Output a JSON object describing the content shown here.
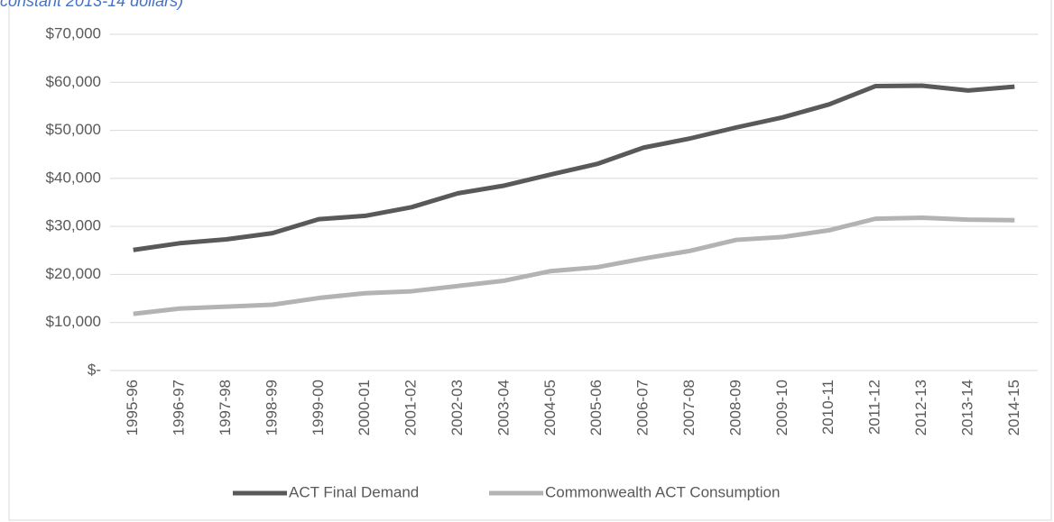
{
  "chart_data": {
    "type": "line",
    "title": "constant 2013-14 dollars)",
    "categories": [
      "1995-96",
      "1996-97",
      "1997-98",
      "1998-99",
      "1999-00",
      "2000-01",
      "2001-02",
      "2002-03",
      "2003-04",
      "2004-05",
      "2005-06",
      "2006-07",
      "2007-08",
      "2008-09",
      "2009-10",
      "2010-11",
      "2011-12",
      "2012-13",
      "2013-14",
      "2014-15"
    ],
    "series": [
      {
        "name": "ACT Final Demand",
        "color": "#595959",
        "values": [
          25100,
          26500,
          27300,
          28600,
          31500,
          32200,
          34000,
          36900,
          38500,
          40800,
          43000,
          46400,
          48300,
          50600,
          52700,
          55400,
          59200,
          59300,
          58300,
          59100
        ]
      },
      {
        "name": "Commonwealth ACT Consumption",
        "color": "#b3b3b3",
        "values": [
          11800,
          12900,
          13300,
          13700,
          15100,
          16100,
          16500,
          17600,
          18700,
          20700,
          21500,
          23300,
          24900,
          27200,
          27800,
          29200,
          31600,
          31800,
          31400,
          31300
        ]
      }
    ],
    "ylim": [
      0,
      70000
    ],
    "yticks": [
      {
        "value": 0,
        "label": "$-"
      },
      {
        "value": 10000,
        "label": "$10,000"
      },
      {
        "value": 20000,
        "label": "$20,000"
      },
      {
        "value": 30000,
        "label": "$30,000"
      },
      {
        "value": 40000,
        "label": "$40,000"
      },
      {
        "value": 50000,
        "label": "$50,000"
      },
      {
        "value": 60000,
        "label": "$60,000"
      },
      {
        "value": 70000,
        "label": "$70,000"
      }
    ],
    "grid": true,
    "legend": "bottom"
  }
}
